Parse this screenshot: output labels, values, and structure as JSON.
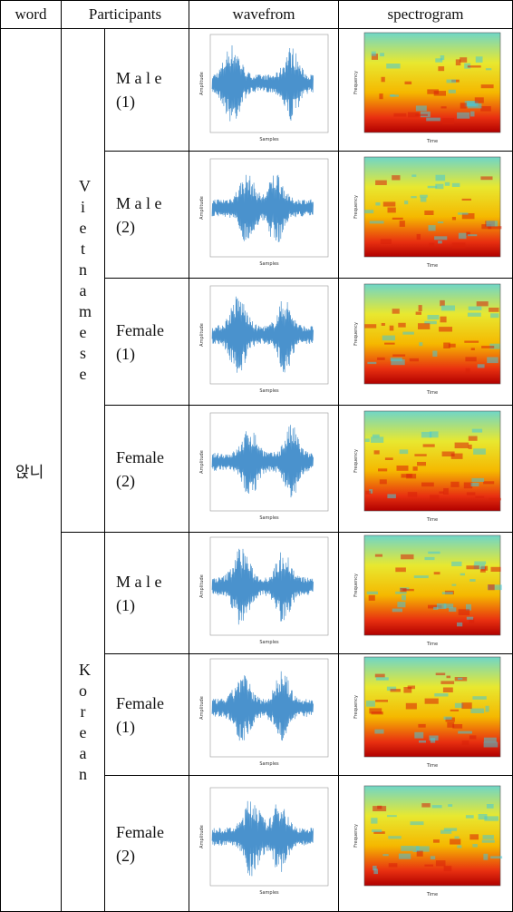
{
  "table": {
    "header": [
      "word",
      "Participants",
      "wavefrom",
      "spectrogram"
    ],
    "word": "앉니",
    "waveform_axes": {
      "x": "Samples",
      "y": "Amplitude"
    },
    "spectrogram_axes": {
      "x": "Time",
      "y": "Frequency"
    },
    "groups": [
      {
        "label": "Vietnamese",
        "rows": [
          {
            "name": "M a l e",
            "number": "(1)"
          },
          {
            "name": "M a l e",
            "number": "(2)"
          },
          {
            "name": "Female",
            "number": "(1)"
          },
          {
            "name": "Female",
            "number": "(2)"
          }
        ]
      },
      {
        "label": "Korean",
        "rows": [
          {
            "name": "M a l e",
            "number": "(1)"
          },
          {
            "name": "Female",
            "number": "(1)"
          },
          {
            "name": "Female",
            "number": "(2)"
          }
        ]
      }
    ]
  }
}
